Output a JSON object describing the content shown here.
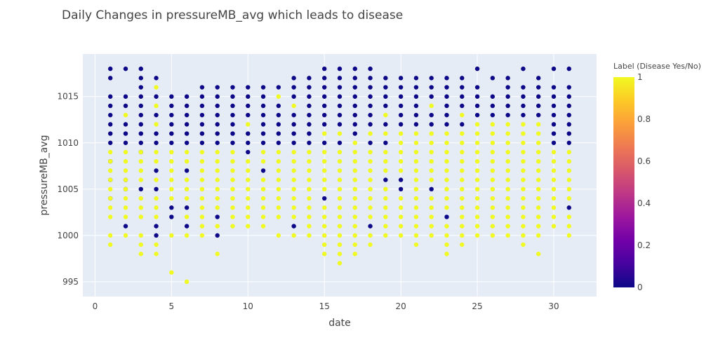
{
  "chart_data": {
    "type": "scatter",
    "title": "Daily Changes in pressureMB_avg which leads to disease",
    "xlabel": "date",
    "ylabel": "pressureMB_avg",
    "xlim": [
      -0.8,
      32.8
    ],
    "ylim": [
      993.4,
      1019.6
    ],
    "x_ticks": [
      0,
      5,
      10,
      15,
      20,
      25,
      30
    ],
    "y_ticks": [
      995,
      1000,
      1005,
      1010,
      1015
    ],
    "grid": true,
    "colorbar": {
      "title": "Label (Disease Yes/No)",
      "ticks": [
        0,
        0.2,
        0.4,
        0.6,
        0.8,
        1
      ],
      "range": [
        0,
        1
      ],
      "colorscale": [
        "#0d0887",
        "#46039f",
        "#7201a8",
        "#9c179e",
        "#bd3786",
        "#d8576b",
        "#ed7953",
        "#fb9f3a",
        "#fdca26",
        "#f0f921"
      ]
    },
    "colors": {
      "label_0": "#0d0887",
      "label_1": "#f0f921",
      "plot_background": "#e5ecf6",
      "grid": "#ffffff"
    },
    "days": [
      {
        "x": 1,
        "label_1": [
          999,
          1000,
          1002,
          1003,
          1004,
          1005,
          1006,
          1007,
          1008,
          1009
        ],
        "label_0": [
          1004,
          1006,
          1008,
          1010,
          1011,
          1012,
          1013,
          1014,
          1015,
          1017,
          1018
        ]
      },
      {
        "x": 2,
        "label_1": [
          1000,
          1002,
          1003,
          1004,
          1005,
          1006,
          1007,
          1008,
          1009,
          1013
        ],
        "label_0": [
          1001,
          1005,
          1006,
          1010,
          1011,
          1012,
          1014,
          1015,
          1018
        ]
      },
      {
        "x": 3,
        "label_1": [
          998,
          999,
          1000,
          1002,
          1003,
          1004,
          1006,
          1007,
          1008,
          1009
        ],
        "label_0": [
          1005,
          1009,
          1010,
          1011,
          1012,
          1013,
          1014,
          1015,
          1016,
          1017,
          1018
        ]
      },
      {
        "x": 4,
        "label_1": [
          998,
          999,
          1002,
          1003,
          1004,
          1006,
          1008,
          1009,
          1012,
          1014,
          1016
        ],
        "label_0": [
          1000,
          1001,
          1005,
          1007,
          1010,
          1011,
          1013,
          1015,
          1017
        ]
      },
      {
        "x": 5,
        "label_1": [
          996,
          1000,
          1004,
          1005,
          1006,
          1007,
          1008,
          1009
        ],
        "label_0": [
          1002,
          1003,
          1010,
          1011,
          1012,
          1013,
          1014,
          1015
        ]
      },
      {
        "x": 6,
        "label_1": [
          995,
          1000,
          1002,
          1004,
          1005,
          1006,
          1008,
          1009
        ],
        "label_0": [
          1001,
          1003,
          1007,
          1010,
          1011,
          1012,
          1013,
          1014,
          1015
        ]
      },
      {
        "x": 7,
        "label_1": [
          1000,
          1001,
          1002,
          1003,
          1004,
          1005,
          1006,
          1007,
          1008,
          1009
        ],
        "label_0": [
          1010,
          1011,
          1012,
          1013,
          1014,
          1015,
          1016
        ]
      },
      {
        "x": 8,
        "label_1": [
          998,
          1001,
          1003,
          1004,
          1005,
          1006,
          1007,
          1008,
          1009
        ],
        "label_0": [
          1000,
          1002,
          1010,
          1011,
          1012,
          1013,
          1014,
          1015,
          1016
        ]
      },
      {
        "x": 9,
        "label_1": [
          1001,
          1002,
          1003,
          1004,
          1005,
          1006,
          1007,
          1008,
          1009
        ],
        "label_0": [
          1010,
          1011,
          1012,
          1013,
          1014,
          1015,
          1016
        ]
      },
      {
        "x": 10,
        "label_1": [
          1001,
          1002,
          1003,
          1004,
          1005,
          1006,
          1007,
          1008,
          1012
        ],
        "label_0": [
          1009,
          1010,
          1011,
          1013,
          1014,
          1015,
          1016
        ]
      },
      {
        "x": 11,
        "label_1": [
          1001,
          1002,
          1003,
          1004,
          1005,
          1006,
          1008,
          1009
        ],
        "label_0": [
          1007,
          1010,
          1011,
          1012,
          1013,
          1014,
          1015,
          1016
        ]
      },
      {
        "x": 12,
        "label_1": [
          1000,
          1002,
          1003,
          1004,
          1005,
          1006,
          1007,
          1008,
          1009,
          1015
        ],
        "label_0": [
          1010,
          1011,
          1012,
          1013,
          1014,
          1016
        ]
      },
      {
        "x": 13,
        "label_1": [
          1000,
          1002,
          1003,
          1004,
          1005,
          1006,
          1007,
          1008,
          1009,
          1014
        ],
        "label_0": [
          1001,
          1010,
          1011,
          1012,
          1013,
          1015,
          1016,
          1017
        ]
      },
      {
        "x": 14,
        "label_1": [
          1000,
          1001,
          1002,
          1003,
          1004,
          1005,
          1006,
          1007,
          1008,
          1009
        ],
        "label_0": [
          1010,
          1011,
          1012,
          1013,
          1014,
          1015,
          1016,
          1017
        ]
      },
      {
        "x": 15,
        "label_1": [
          998,
          999,
          1000,
          1001,
          1002,
          1003,
          1005,
          1006,
          1007,
          1008,
          1009,
          1011
        ],
        "label_0": [
          1004,
          1010,
          1012,
          1013,
          1014,
          1015,
          1016,
          1017,
          1018
        ]
      },
      {
        "x": 16,
        "label_1": [
          997,
          998,
          999,
          1000,
          1001,
          1002,
          1003,
          1004,
          1005,
          1006,
          1007,
          1008,
          1009,
          1011
        ],
        "label_0": [
          1010,
          1012,
          1013,
          1014,
          1015,
          1016,
          1017,
          1018
        ]
      },
      {
        "x": 17,
        "label_1": [
          998,
          999,
          1000,
          1001,
          1002,
          1003,
          1004,
          1005,
          1006,
          1007,
          1008,
          1009,
          1010
        ],
        "label_0": [
          1011,
          1012,
          1013,
          1014,
          1015,
          1016,
          1017,
          1018
        ]
      },
      {
        "x": 18,
        "label_1": [
          999,
          1000,
          1002,
          1003,
          1004,
          1005,
          1006,
          1007,
          1008,
          1009,
          1011
        ],
        "label_0": [
          1001,
          1010,
          1012,
          1013,
          1014,
          1015,
          1016,
          1017,
          1018
        ]
      },
      {
        "x": 19,
        "label_1": [
          1000,
          1001,
          1002,
          1003,
          1004,
          1005,
          1007,
          1008,
          1009,
          1011,
          1013
        ],
        "label_0": [
          1006,
          1010,
          1012,
          1014,
          1015,
          1016,
          1017
        ]
      },
      {
        "x": 20,
        "label_1": [
          1000,
          1001,
          1002,
          1003,
          1004,
          1007,
          1008,
          1009,
          1010,
          1011
        ],
        "label_0": [
          1005,
          1006,
          1012,
          1013,
          1014,
          1015,
          1016,
          1017
        ]
      },
      {
        "x": 21,
        "label_1": [
          999,
          1000,
          1001,
          1002,
          1003,
          1004,
          1005,
          1006,
          1007,
          1008,
          1009,
          1010,
          1011
        ],
        "label_0": [
          1012,
          1013,
          1014,
          1015,
          1016,
          1017
        ]
      },
      {
        "x": 22,
        "label_1": [
          1000,
          1001,
          1002,
          1003,
          1004,
          1006,
          1007,
          1008,
          1009,
          1010,
          1011,
          1014
        ],
        "label_0": [
          1005,
          1012,
          1013,
          1015,
          1016,
          1017
        ]
      },
      {
        "x": 23,
        "label_1": [
          998,
          999,
          1000,
          1001,
          1003,
          1004,
          1005,
          1006,
          1007,
          1008,
          1009,
          1010,
          1011
        ],
        "label_0": [
          1002,
          1012,
          1013,
          1014,
          1015,
          1016,
          1017
        ]
      },
      {
        "x": 24,
        "label_1": [
          999,
          1000,
          1001,
          1002,
          1003,
          1004,
          1005,
          1006,
          1007,
          1008,
          1009,
          1010,
          1011,
          1013
        ],
        "label_0": [
          1012,
          1014,
          1015,
          1016,
          1017
        ]
      },
      {
        "x": 25,
        "label_1": [
          1000,
          1001,
          1002,
          1003,
          1004,
          1005,
          1006,
          1007,
          1008,
          1009,
          1010,
          1011,
          1012
        ],
        "label_0": [
          1013,
          1014,
          1015,
          1016,
          1018
        ]
      },
      {
        "x": 26,
        "label_1": [
          1000,
          1001,
          1002,
          1003,
          1004,
          1005,
          1006,
          1007,
          1008,
          1009,
          1010,
          1011,
          1012
        ],
        "label_0": [
          1013,
          1014,
          1015,
          1017
        ]
      },
      {
        "x": 27,
        "label_1": [
          1000,
          1001,
          1002,
          1003,
          1004,
          1005,
          1006,
          1007,
          1008,
          1009,
          1010,
          1011,
          1012
        ],
        "label_0": [
          1013,
          1014,
          1015,
          1016,
          1017
        ]
      },
      {
        "x": 28,
        "label_1": [
          999,
          1000,
          1001,
          1002,
          1003,
          1004,
          1005,
          1006,
          1007,
          1008,
          1009,
          1010,
          1011,
          1012
        ],
        "label_0": [
          1013,
          1014,
          1015,
          1016,
          1018
        ]
      },
      {
        "x": 29,
        "label_1": [
          998,
          1000,
          1001,
          1002,
          1003,
          1004,
          1005,
          1006,
          1007,
          1008,
          1009,
          1010,
          1011,
          1012
        ],
        "label_0": [
          1013,
          1014,
          1015,
          1016,
          1017
        ]
      },
      {
        "x": 30,
        "label_1": [
          1001,
          1002,
          1003,
          1004,
          1005,
          1006,
          1007,
          1008,
          1009
        ],
        "label_0": [
          1010,
          1011,
          1012,
          1013,
          1014,
          1015,
          1016,
          1018
        ]
      },
      {
        "x": 31,
        "label_1": [
          1000,
          1001,
          1002,
          1004,
          1005,
          1006,
          1007,
          1008,
          1009
        ],
        "label_0": [
          1003,
          1010,
          1011,
          1012,
          1013,
          1014,
          1015,
          1016,
          1018
        ]
      }
    ]
  }
}
